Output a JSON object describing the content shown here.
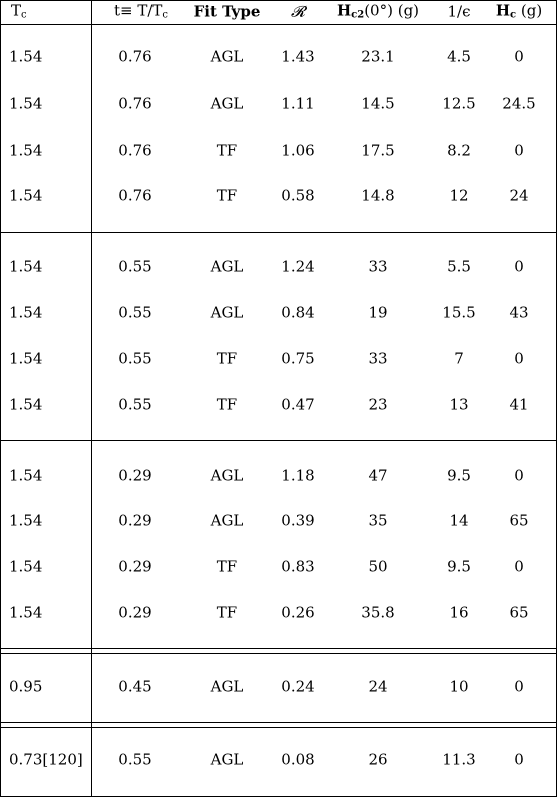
{
  "header": {
    "tc": "T",
    "tc_sub": "c",
    "t": "t≡ T/T",
    "t_sub": "c",
    "fit": "Fit Type",
    "r": "𝓡",
    "hc2_pre": "H",
    "hc2_sub": "c2",
    "hc2_post": "(0°) (g)",
    "eps": "1/ϵ",
    "hc_pre": "H",
    "hc_sub": "c",
    "hc_post": " (g)"
  },
  "rows": [
    {
      "tc": "1.54",
      "t": "0.76",
      "fit": "AGL",
      "r": "1.43",
      "hc2": "23.1",
      "eps": "4.5",
      "hc": "0"
    },
    {
      "tc": "1.54",
      "t": "0.76",
      "fit": "AGL",
      "r": "1.11",
      "hc2": "14.5",
      "eps": "12.5",
      "hc": "24.5"
    },
    {
      "tc": "1.54",
      "t": "0.76",
      "fit": "TF",
      "r": "1.06",
      "hc2": "17.5",
      "eps": "8.2",
      "hc": "0"
    },
    {
      "tc": "1.54",
      "t": "0.76",
      "fit": "TF",
      "r": "0.58",
      "hc2": "14.8",
      "eps": "12",
      "hc": "24"
    },
    {
      "tc": "1.54",
      "t": "0.55",
      "fit": "AGL",
      "r": "1.24",
      "hc2": "33",
      "eps": "5.5",
      "hc": "0"
    },
    {
      "tc": "1.54",
      "t": "0.55",
      "fit": "AGL",
      "r": "0.84",
      "hc2": "19",
      "eps": "15.5",
      "hc": "43"
    },
    {
      "tc": "1.54",
      "t": "0.55",
      "fit": "TF",
      "r": "0.75",
      "hc2": "33",
      "eps": "7",
      "hc": "0"
    },
    {
      "tc": "1.54",
      "t": "0.55",
      "fit": "TF",
      "r": "0.47",
      "hc2": "23",
      "eps": "13",
      "hc": "41"
    },
    {
      "tc": "1.54",
      "t": "0.29",
      "fit": "AGL",
      "r": "1.18",
      "hc2": "47",
      "eps": "9.5",
      "hc": "0"
    },
    {
      "tc": "1.54",
      "t": "0.29",
      "fit": "AGL",
      "r": "0.39",
      "hc2": "35",
      "eps": "14",
      "hc": "65"
    },
    {
      "tc": "1.54",
      "t": "0.29",
      "fit": "TF",
      "r": "0.83",
      "hc2": "50",
      "eps": "9.5",
      "hc": "0"
    },
    {
      "tc": "1.54",
      "t": "0.29",
      "fit": "TF",
      "r": "0.26",
      "hc2": "35.8",
      "eps": "16",
      "hc": "65"
    },
    {
      "tc": "0.95",
      "t": "0.45",
      "fit": "AGL",
      "r": "0.24",
      "hc2": "24",
      "eps": "10",
      "hc": "0"
    },
    {
      "tc": "0.73[120]",
      "t": "0.55",
      "fit": "AGL",
      "r": "0.08",
      "hc2": "26",
      "eps": "11.3",
      "hc": "0"
    }
  ]
}
